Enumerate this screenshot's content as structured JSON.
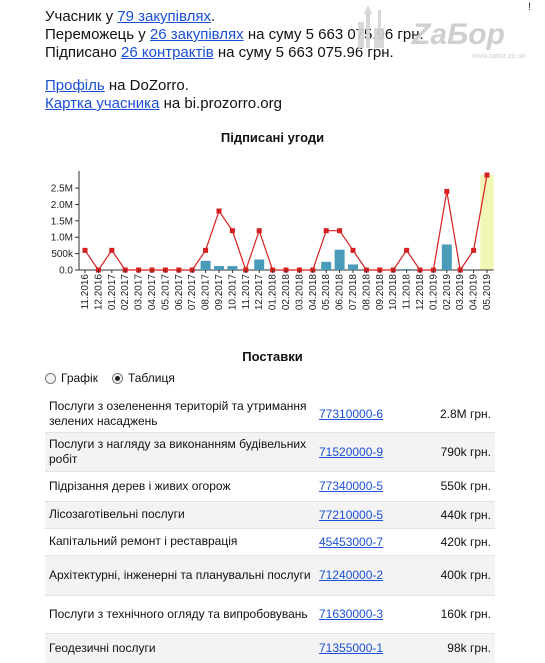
{
  "header": {
    "participant_prefix": "Учасник у ",
    "participant_link": "79 закупівлях",
    "participant_suffix": ".",
    "winner_prefix": "Переможець у ",
    "winner_link": "26 закупівлях",
    "winner_suffix": " на суму 5 663 075.96 грн.",
    "signed_prefix": "Підписано ",
    "signed_link": "26 контрактів",
    "signed_suffix": " на суму 5 663 075.96 грн.",
    "profile_link": "Профіль",
    "profile_suffix": " на DoZorro.",
    "card_link": "Картка учасника",
    "card_suffix": " на bi.prozorro.org"
  },
  "watermark": {
    "text": "ZаБор",
    "sub": "www.zabor.zp.ua"
  },
  "corner_mark": "!",
  "chart_title": "Підписані угоди",
  "chart_data": {
    "type": "bar",
    "categories": [
      "11.2016",
      "12.2016",
      "01.2017",
      "02.2017",
      "03.2017",
      "04.2017",
      "05.2017",
      "06.2017",
      "07.2017",
      "08.2017",
      "09.2017",
      "10.2017",
      "11.2017",
      "12.2017",
      "01.2018",
      "02.2018",
      "03.2018",
      "04.2018",
      "05.2018",
      "06.2018",
      "07.2018",
      "08.2018",
      "09.2018",
      "10.2018",
      "11.2018",
      "12.2018",
      "01.2019",
      "02.2019",
      "03.2019",
      "04.2019",
      "05.2019"
    ],
    "series": [
      {
        "values": [
          0,
          0,
          0,
          0,
          0,
          0,
          0,
          0,
          0,
          280000,
          120000,
          120000,
          0,
          320000,
          0,
          0,
          0,
          0,
          250000,
          620000,
          170000,
          0,
          0,
          0,
          30000,
          0,
          0,
          780000,
          0,
          0,
          0
        ]
      },
      {
        "values": [
          600000,
          0,
          600000,
          0,
          0,
          0,
          0,
          0,
          0,
          600000,
          1800000,
          1200000,
          0,
          1200000,
          0,
          0,
          0,
          0,
          1200000,
          1200000,
          600000,
          0,
          0,
          0,
          600000,
          0,
          0,
          2400000,
          0,
          600000,
          2900000
        ]
      }
    ],
    "highlight_category": "05.2019",
    "yticks": [
      "0.0",
      "500k",
      "1.0M",
      "1.5M",
      "2.0M",
      "2.5M"
    ],
    "ylim": [
      0,
      2900000
    ],
    "bar_color": "#4a9ab9",
    "line_color": "#d61f1f",
    "highlight_color": "#f2f7b6"
  },
  "deliveries": {
    "title": "Поставки",
    "view_options": [
      {
        "label": "Графік",
        "checked": false
      },
      {
        "label": "Таблиця",
        "checked": true
      }
    ],
    "rows": [
      {
        "name": "Послуги з озеленення територій та утримання зелених насаджень",
        "code": "77310000-6",
        "amount": "2.8M грн."
      },
      {
        "name": "Послуги з нагляду за виконанням будівельних робіт",
        "code": "71520000-9",
        "amount": "790k грн."
      },
      {
        "name": "Підрізання дерев і живих огорож",
        "code": "77340000-5",
        "amount": "550k грн."
      },
      {
        "name": "Лісозаготівельні послуги",
        "code": "77210000-5",
        "amount": "440k грн."
      },
      {
        "name": "Капітальний ремонт і реставрація",
        "code": "45453000-7",
        "amount": "420k грн."
      },
      {
        "name": "Архітектурні, інженерні та планувальні послуги",
        "code": "71240000-2",
        "amount": "400k грн."
      },
      {
        "name": "Послуги з технічного огляду та випробовувань",
        "code": "71630000-3",
        "amount": "160k грн."
      },
      {
        "name": "Геодезичні послуги",
        "code": "71355000-1",
        "amount": "98k грн."
      }
    ]
  }
}
